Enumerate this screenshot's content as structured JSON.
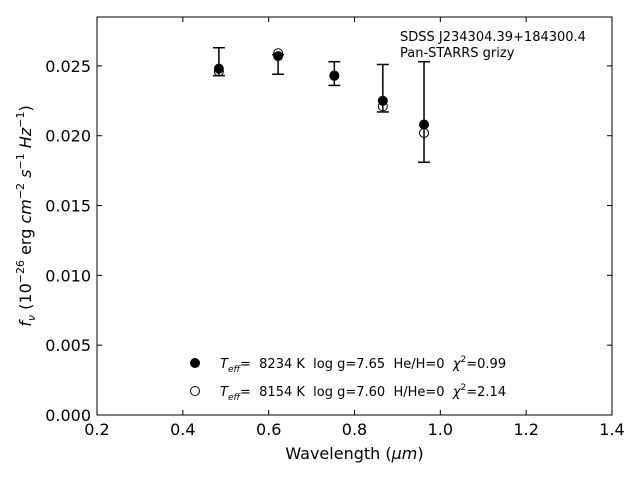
{
  "chart_data": {
    "type": "scatter",
    "xlabel_prefix": "Wavelength (",
    "xlabel_unit": "μm",
    "xlabel_suffix": ")",
    "ylabel_parts": [
      "f",
      "ν",
      " (10",
      "−26",
      " erg ",
      "cm",
      "−2",
      " ",
      "s",
      "−1",
      " ",
      "Hz",
      "−1",
      ")"
    ],
    "xlim": [
      0.2,
      1.4
    ],
    "ylim": [
      0.0,
      0.0285
    ],
    "xticks": [
      0.2,
      0.4,
      0.6,
      0.8,
      1.0,
      1.2,
      1.4
    ],
    "xtick_labels": [
      "0.2",
      "0.4",
      "0.6",
      "0.8",
      "1.0",
      "1.2",
      "1.4"
    ],
    "yticks": [
      0.0,
      0.005,
      0.01,
      0.015,
      0.02,
      0.025
    ],
    "ytick_labels": [
      "0.000",
      "0.005",
      "0.010",
      "0.015",
      "0.020",
      "0.025"
    ],
    "annotations": [
      "SDSS J234304.39+184300.4",
      "Pan-STARRS grizy"
    ],
    "observed": [
      {
        "x": 0.484,
        "y": 0.0253,
        "yerr_low": 0.0243,
        "yerr_high": 0.0263
      },
      {
        "x": 0.622,
        "y": 0.0254,
        "yerr_low": 0.0244,
        "yerr_high": 0.0258
      },
      {
        "x": 0.753,
        "y": 0.0244,
        "yerr_low": 0.0236,
        "yerr_high": 0.0253
      },
      {
        "x": 0.866,
        "y": 0.0225,
        "yerr_low": 0.0217,
        "yerr_high": 0.0251
      },
      {
        "x": 0.962,
        "y": 0.0217,
        "yerr_low": 0.0181,
        "yerr_high": 0.0253
      }
    ],
    "series": [
      {
        "marker": "filled-circle",
        "legend_parts": {
          "t": "T",
          "sub": "eff",
          "mid": "=  8234 K  log g=7.65  He/H=0  ",
          "chi": "χ",
          "sup": "2",
          "end": "=0.99"
        },
        "x": [
          0.484,
          0.622,
          0.753,
          0.866,
          0.962
        ],
        "y": [
          0.0248,
          0.0257,
          0.0243,
          0.0225,
          0.0208
        ]
      },
      {
        "marker": "open-circle",
        "legend_parts": {
          "t": "T",
          "sub": "eff",
          "mid": "=  8154 K  log g=7.60  H/He=0  ",
          "chi": "χ",
          "sup": "2",
          "end": "=2.14"
        },
        "x": [
          0.484,
          0.622,
          0.753,
          0.866,
          0.962
        ],
        "y": [
          0.0246,
          0.0259,
          0.0243,
          0.0221,
          0.0202
        ]
      }
    ]
  }
}
